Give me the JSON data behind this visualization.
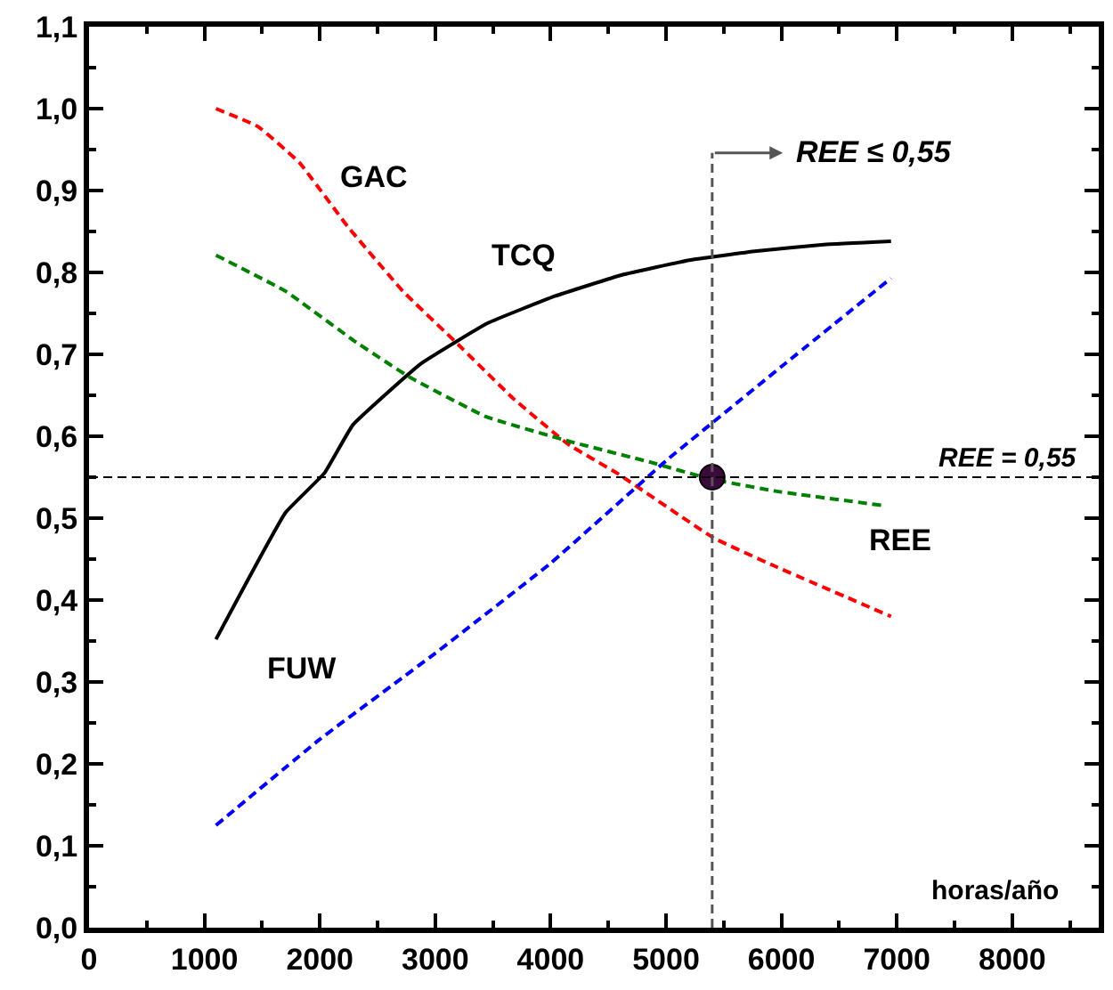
{
  "chart_data": {
    "type": "line",
    "xlabel": "horas/año",
    "xlim": [
      0,
      8750
    ],
    "ylim": [
      0,
      1.1
    ],
    "xticks": [
      0,
      1000,
      2000,
      3000,
      4000,
      5000,
      6000,
      7000,
      8000
    ],
    "yticks": [
      {
        "value": 0,
        "label": "0,0"
      },
      {
        "value": 0.1,
        "label": "0,1"
      },
      {
        "value": 0.2,
        "label": "0,2"
      },
      {
        "value": 0.3,
        "label": "0,3"
      },
      {
        "value": 0.4,
        "label": "0,4"
      },
      {
        "value": 0.5,
        "label": "0,5"
      },
      {
        "value": 0.6,
        "label": "0,6"
      },
      {
        "value": 0.7,
        "label": "0,7"
      },
      {
        "value": 0.8,
        "label": "0,8"
      },
      {
        "value": 0.9,
        "label": "0,9"
      },
      {
        "value": 1.0,
        "label": "1,0"
      },
      {
        "value": 1.1,
        "label": "1,1"
      }
    ],
    "grid": false,
    "legend": false,
    "marker": "none",
    "series": [
      {
        "name": "GAC",
        "color": "#ff0000",
        "line_style": "dashed",
        "x": [
          1100,
          1465,
          1823,
          2242,
          2720,
          3199,
          3677,
          4155,
          4574,
          5411,
          5949,
          6950
        ],
        "values": [
          1.0,
          0.978,
          0.934,
          0.856,
          0.777,
          0.712,
          0.646,
          0.59,
          0.555,
          0.476,
          0.441,
          0.38
        ]
      },
      {
        "name": "TCQ",
        "color": "#000000",
        "line_style": "solid",
        "x": [
          1100,
          1704,
          2040,
          2287,
          2870,
          3453,
          4036,
          4619,
          5202,
          5785,
          6368,
          6950
        ],
        "values": [
          0.352,
          0.507,
          0.555,
          0.614,
          0.688,
          0.738,
          0.771,
          0.797,
          0.815,
          0.826,
          0.834,
          0.838
        ]
      },
      {
        "name": "REE",
        "color": "#008000",
        "line_style": "dashed",
        "x": [
          1100,
          1704,
          2302,
          2780,
          3438,
          4155,
          4872,
          5381,
          5949,
          6903
        ],
        "values": [
          0.821,
          0.777,
          0.716,
          0.672,
          0.624,
          0.594,
          0.568,
          0.548,
          0.533,
          0.515
        ]
      },
      {
        "name": "FUW",
        "color": "#0000ff",
        "line_style": "dashed",
        "x": [
          1100,
          2000,
          3000,
          4000,
          5000,
          6000,
          6950
        ],
        "values": [
          0.125,
          0.23,
          0.335,
          0.445,
          0.57,
          0.685,
          0.793
        ]
      },
      {
        "type": "scatter",
        "marker": "circle",
        "color": "#3d0a3d",
        "x": [
          5400
        ],
        "values": [
          0.55
        ]
      }
    ],
    "ref_lines": [
      {
        "axis": "y",
        "value": 0.55,
        "label": "REE = 0,55",
        "color": "#000000",
        "line_style": "dashed"
      },
      {
        "axis": "x",
        "value": 5400,
        "label": "REE ≤ 0,55",
        "color": "#555555",
        "line_style": "dashed"
      }
    ]
  }
}
